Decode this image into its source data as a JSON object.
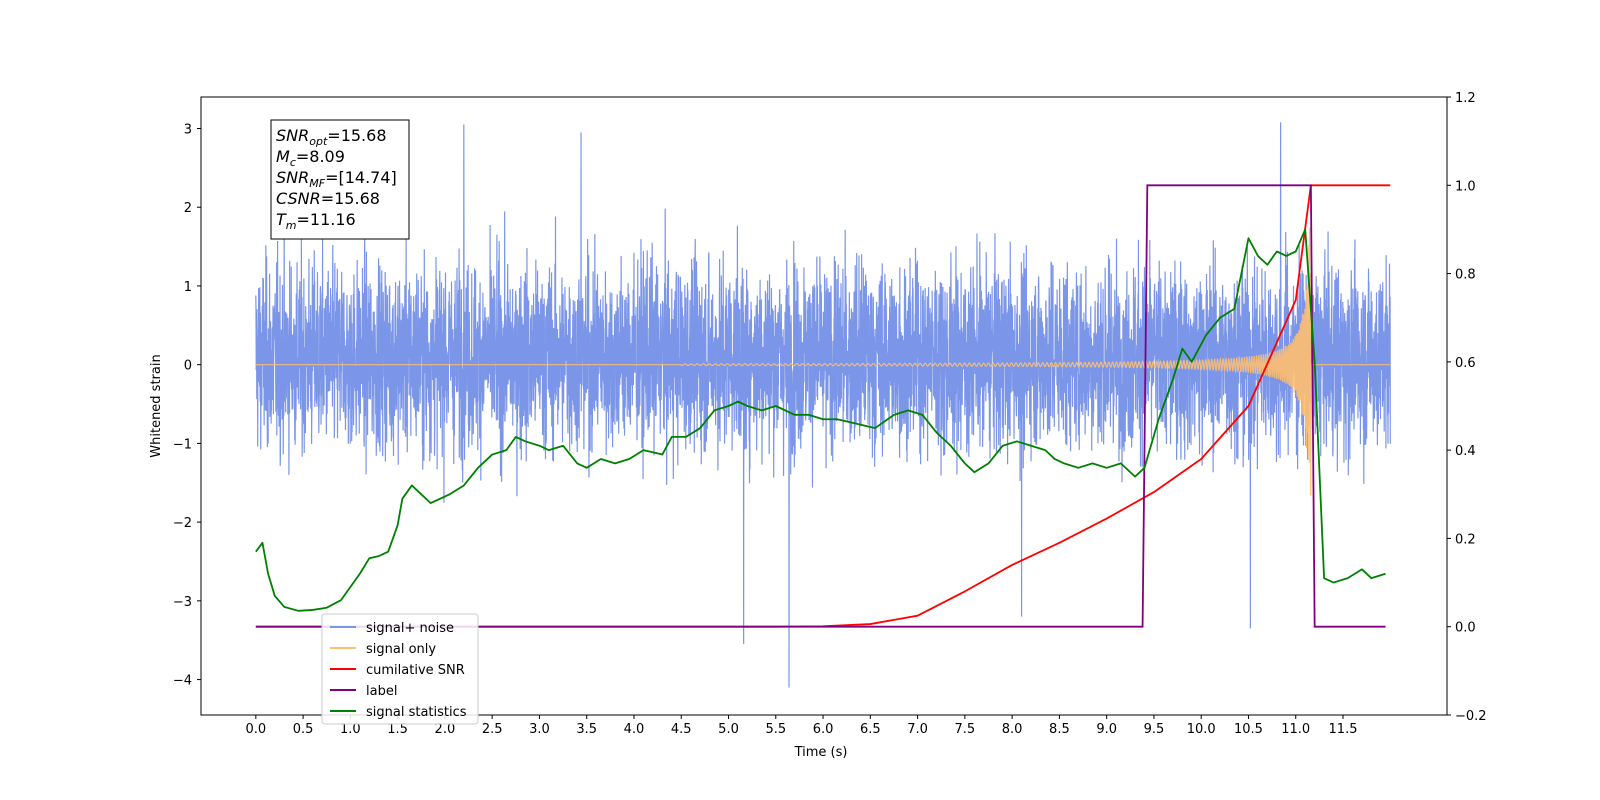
{
  "chart_data": {
    "type": "line",
    "xlabel": "Time (s)",
    "ylabel": "Whitened strain",
    "xlim": [
      -0.58,
      12.6
    ],
    "ylim": [
      -4.45,
      3.4
    ],
    "ylim_right": [
      -0.2,
      1.2
    ],
    "x_ticks": [
      "0.0",
      "0.5",
      "1.0",
      "1.5",
      "2.0",
      "2.5",
      "3.0",
      "3.5",
      "4.0",
      "4.5",
      "5.0",
      "5.5",
      "6.0",
      "6.5",
      "7.0",
      "7.5",
      "8.0",
      "8.5",
      "9.0",
      "9.5",
      "10.0",
      "10.5",
      "11.0",
      "11.5"
    ],
    "y_ticks_left": [
      "3",
      "2",
      "1",
      "0",
      "−1",
      "−2",
      "−3",
      "−4"
    ],
    "y_ticks_right": [
      "1.2",
      "1.0",
      "0.8",
      "0.6",
      "0.4",
      "0.2",
      "0.0",
      "−0.2"
    ],
    "grid": false,
    "legend_position": "lower-left",
    "annotation": {
      "lines": [
        {
          "name": "SNR",
          "sub": "opt",
          "value": "=15.68"
        },
        {
          "name": "M",
          "sub": "c",
          "value": "=8.09"
        },
        {
          "name": "SNR",
          "sub": "MF",
          "value": "=[14.74]"
        },
        {
          "name": "CSNR",
          "sub": "",
          "value": "=15.68"
        },
        {
          "name": "T",
          "sub": "m",
          "value": "=11.16"
        }
      ]
    },
    "series": [
      {
        "name": "signal+ noise",
        "axis": "left",
        "color": "#7b96e8",
        "envelope": {
          "x": [
            0.0,
            12.0
          ],
          "typical_range": [
            -1.8,
            2.1
          ],
          "peak_max": 3.05,
          "peak_min": -4.1
        }
      },
      {
        "name": "signal only",
        "axis": "left",
        "color": "#ffbf70",
        "chirp": {
          "x_start": 6.0,
          "x_merger": 11.16,
          "x_end": 12.0,
          "max_amplitude": 1.75
        }
      },
      {
        "name": "cumilative SNR",
        "axis": "right",
        "color": "#ff0000",
        "x": [
          0,
          5.5,
          6.0,
          6.5,
          7.0,
          7.5,
          8.0,
          8.5,
          9.0,
          9.5,
          10.0,
          10.5,
          11.0,
          11.16,
          12.0
        ],
        "y": [
          0,
          0,
          0.001,
          0.006,
          0.025,
          0.08,
          0.14,
          0.19,
          0.245,
          0.305,
          0.38,
          0.5,
          0.74,
          1.0,
          1.0
        ]
      },
      {
        "name": "label",
        "axis": "right",
        "color": "#800080",
        "x": [
          0,
          9.38,
          9.43,
          11.16,
          11.2,
          11.95
        ],
        "y": [
          0,
          0,
          1,
          1,
          0,
          0
        ]
      },
      {
        "name": "signal statistics",
        "axis": "right",
        "color": "#008000",
        "x": [
          0,
          0.07,
          0.13,
          0.2,
          0.3,
          0.45,
          0.6,
          0.75,
          0.9,
          1.0,
          1.1,
          1.2,
          1.3,
          1.4,
          1.5,
          1.55,
          1.65,
          1.75,
          1.85,
          1.95,
          2.05,
          2.2,
          2.35,
          2.5,
          2.65,
          2.75,
          2.85,
          3.0,
          3.1,
          3.25,
          3.4,
          3.5,
          3.65,
          3.8,
          3.95,
          4.1,
          4.3,
          4.4,
          4.55,
          4.7,
          4.85,
          5.0,
          5.1,
          5.2,
          5.35,
          5.5,
          5.7,
          5.85,
          6.0,
          6.15,
          6.35,
          6.55,
          6.75,
          6.9,
          7.05,
          7.2,
          7.35,
          7.5,
          7.6,
          7.75,
          7.9,
          8.05,
          8.2,
          8.35,
          8.45,
          8.55,
          8.7,
          8.85,
          9.0,
          9.15,
          9.3,
          9.4,
          9.55,
          9.7,
          9.8,
          9.9,
          10.05,
          10.2,
          10.35,
          10.5,
          10.6,
          10.7,
          10.8,
          10.9,
          11.0,
          11.1,
          11.2,
          11.3,
          11.4,
          11.55,
          11.7,
          11.8,
          11.95
        ],
        "y": [
          0.17,
          0.19,
          0.12,
          0.07,
          0.045,
          0.036,
          0.038,
          0.043,
          0.06,
          0.09,
          0.12,
          0.155,
          0.16,
          0.17,
          0.23,
          0.29,
          0.32,
          0.3,
          0.28,
          0.29,
          0.3,
          0.32,
          0.36,
          0.39,
          0.4,
          0.43,
          0.42,
          0.41,
          0.4,
          0.41,
          0.37,
          0.36,
          0.38,
          0.37,
          0.38,
          0.4,
          0.39,
          0.43,
          0.43,
          0.45,
          0.49,
          0.5,
          0.51,
          0.5,
          0.49,
          0.5,
          0.48,
          0.48,
          0.47,
          0.47,
          0.46,
          0.45,
          0.48,
          0.49,
          0.48,
          0.44,
          0.41,
          0.37,
          0.35,
          0.37,
          0.41,
          0.42,
          0.41,
          0.4,
          0.38,
          0.37,
          0.36,
          0.37,
          0.36,
          0.37,
          0.34,
          0.36,
          0.47,
          0.56,
          0.63,
          0.6,
          0.66,
          0.7,
          0.72,
          0.88,
          0.84,
          0.82,
          0.85,
          0.84,
          0.85,
          0.9,
          0.6,
          0.11,
          0.1,
          0.11,
          0.13,
          0.11,
          0.12
        ]
      }
    ]
  }
}
